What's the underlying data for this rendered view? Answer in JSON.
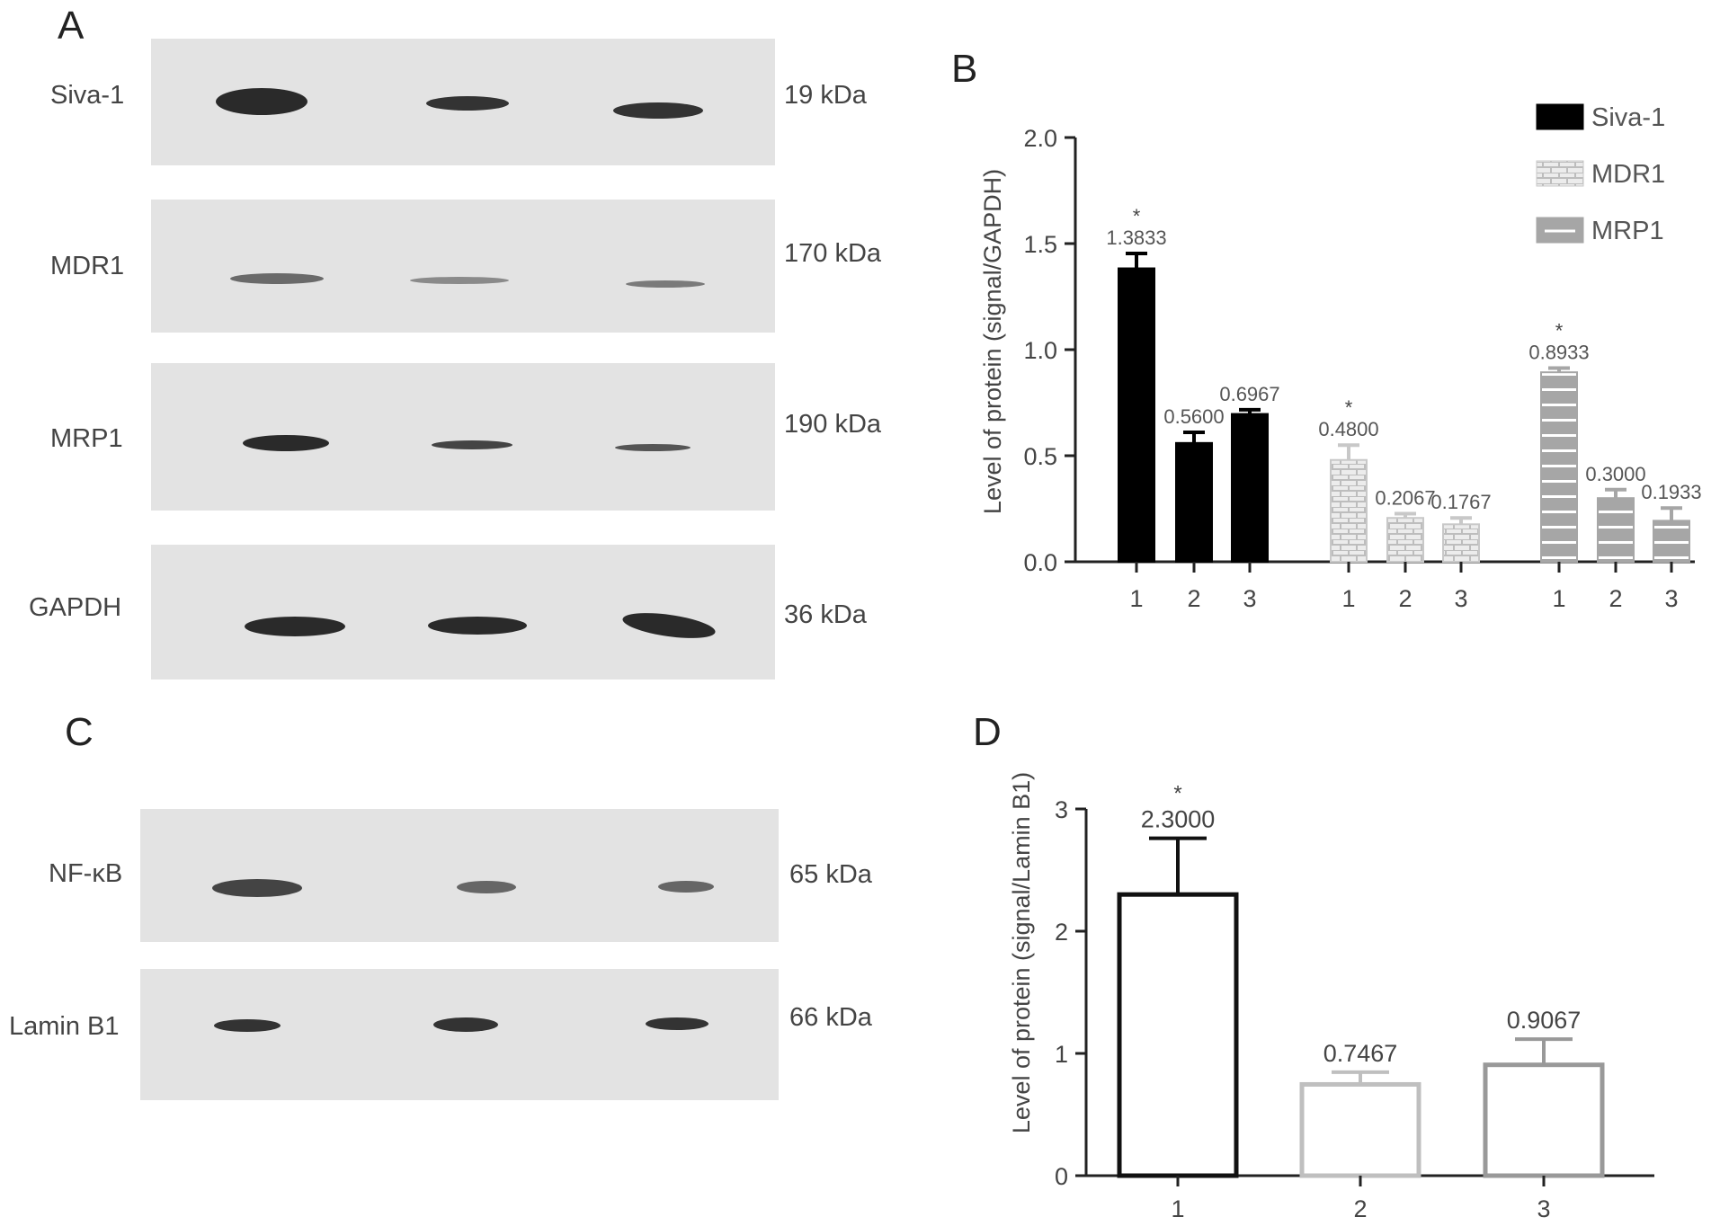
{
  "panels": {
    "a": "A",
    "b": "B",
    "c": "C",
    "d": "D"
  },
  "blots_a": [
    {
      "name": "Siva-1",
      "kda": "19 kDa"
    },
    {
      "name": "MDR1",
      "kda": "170 kDa"
    },
    {
      "name": "MRP1",
      "kda": "190 kDa"
    },
    {
      "name": "GAPDH",
      "kda": "36 kDa"
    }
  ],
  "blots_c": [
    {
      "name": "NF-κB",
      "kda": "65 kDa"
    },
    {
      "name": "Lamin B1",
      "kda": "66 kDa"
    }
  ],
  "chart_data": [
    {
      "type": "bar",
      "panel": "B",
      "ylabel": "Level of protein (signal/GAPDH)",
      "ylim": [
        0,
        2.0
      ],
      "yticks": [
        "0.0",
        "0.5",
        "1.0",
        "1.5",
        "2.0"
      ],
      "legend_position": "top-right",
      "groups": [
        {
          "name": "Siva-1",
          "color": "#000000",
          "pattern": "solid",
          "categories": [
            "1",
            "2",
            "3"
          ],
          "values": [
            1.3833,
            0.56,
            0.6967
          ],
          "errors": [
            0.07,
            0.05,
            0.02
          ],
          "labels": [
            "1.3833",
            "0.5600",
            "0.6967"
          ],
          "significant": [
            true,
            false,
            false
          ]
        },
        {
          "name": "MDR1",
          "color": "#c8c8c8",
          "pattern": "brick",
          "categories": [
            "1",
            "2",
            "3"
          ],
          "values": [
            0.48,
            0.2067,
            0.1767
          ],
          "errors": [
            0.07,
            0.02,
            0.03
          ],
          "labels": [
            "0.4800",
            "0.2067",
            "0.1767"
          ],
          "significant": [
            true,
            false,
            false
          ]
        },
        {
          "name": "MRP1",
          "color": "#a6a6a6",
          "pattern": "lines",
          "categories": [
            "1",
            "2",
            "3"
          ],
          "values": [
            0.8933,
            0.3,
            0.1933
          ],
          "errors": [
            0.02,
            0.04,
            0.06
          ],
          "labels": [
            "0.8933",
            "0.3000",
            "0.1933"
          ],
          "significant": [
            true,
            false,
            false
          ]
        }
      ],
      "significance_mark": "*"
    },
    {
      "type": "bar",
      "panel": "D",
      "ylabel": "Level of protein (signal/Lamin B1)",
      "ylim": [
        0,
        3
      ],
      "yticks": [
        "0",
        "1",
        "2",
        "3"
      ],
      "categories": [
        "1",
        "2",
        "3"
      ],
      "values": [
        2.3,
        0.7467,
        0.9067
      ],
      "errors": [
        0.46,
        0.1,
        0.21
      ],
      "labels": [
        "2.3000",
        "0.7467",
        "0.9067"
      ],
      "colors": [
        "#111111",
        "#bfbfbf",
        "#999999"
      ],
      "significant": [
        true,
        false,
        false
      ],
      "significance_mark": "*"
    }
  ]
}
